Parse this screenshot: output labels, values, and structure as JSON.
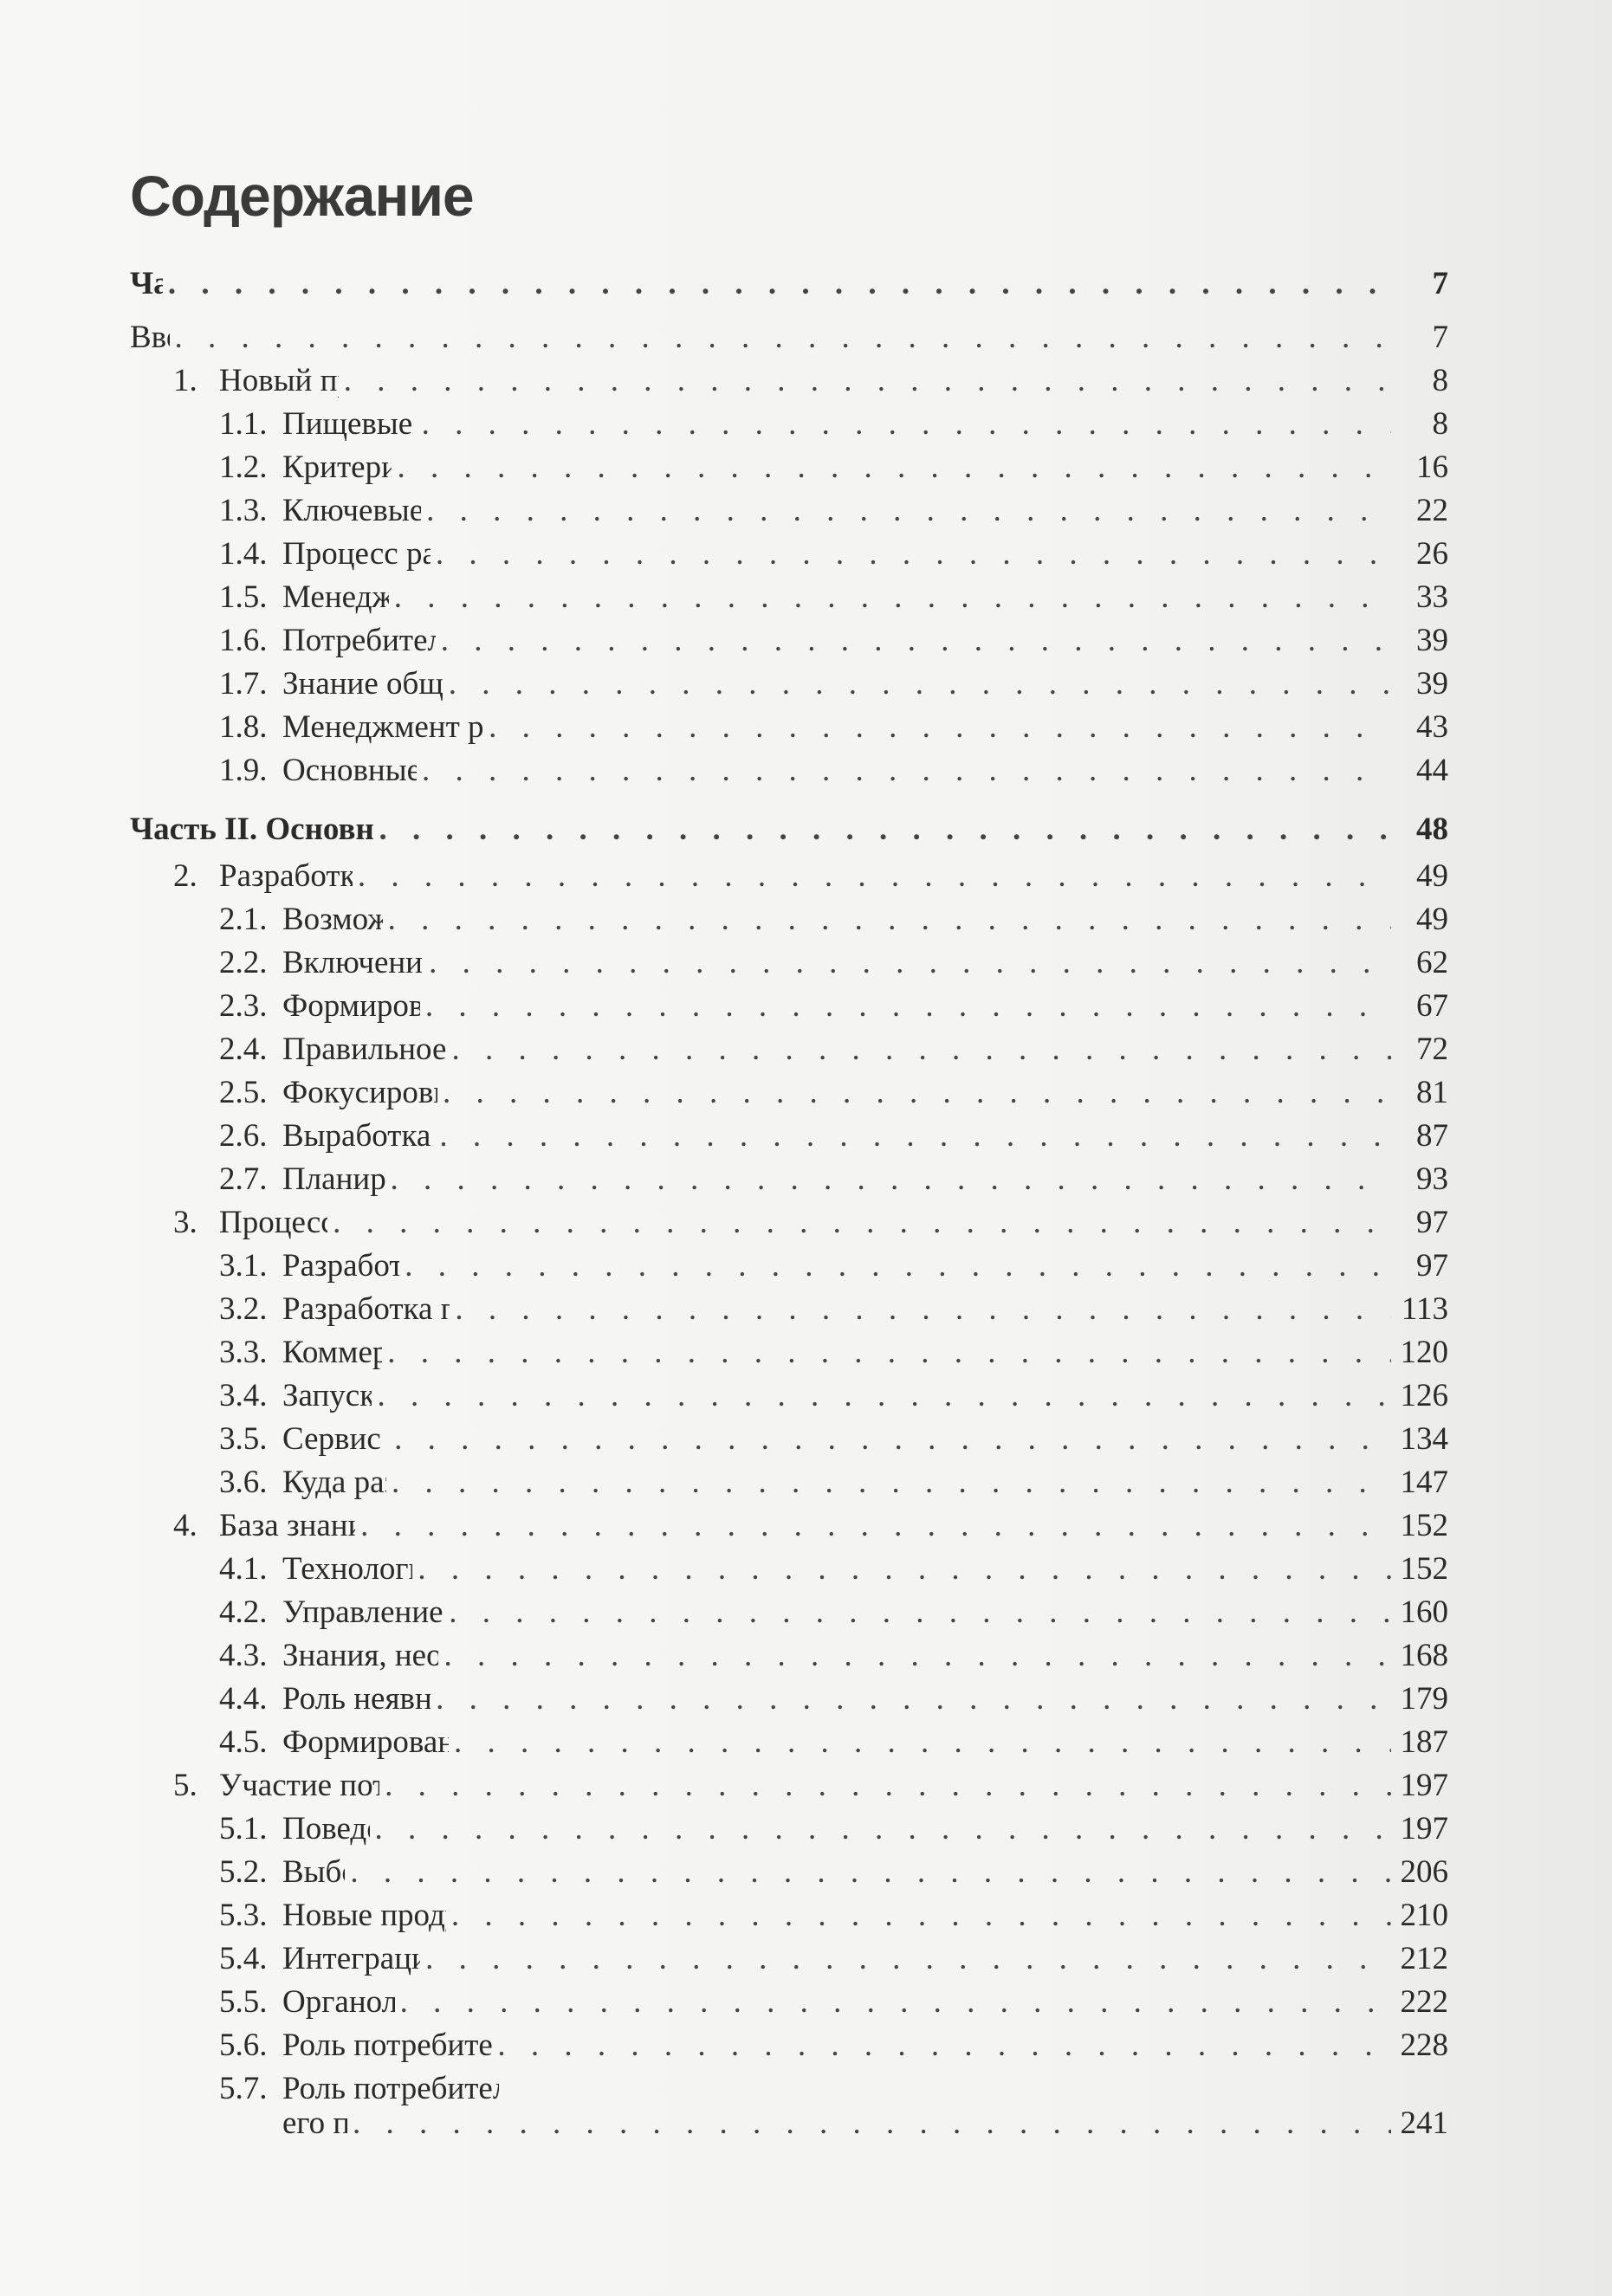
{
  "title": "Содержание",
  "entries": [
    {
      "level": 0,
      "num": "",
      "text": "Часть I",
      "page": "7",
      "part": true
    },
    {
      "level": 0,
      "num": "",
      "text": "Введение",
      "page": "7"
    },
    {
      "level": 1,
      "num": "1.",
      "text": "Новый продукт – ключи к успеху",
      "page": "8"
    },
    {
      "level": 2,
      "num": "1.1.",
      "text": "Пищевые продукты – основа инноваций",
      "page": "8"
    },
    {
      "level": 2,
      "num": "1.2.",
      "text": "Критерии успешности продукта",
      "page": "16"
    },
    {
      "level": 2,
      "num": "1.3.",
      "text": "Ключевые факторы успешности продукта",
      "page": "22"
    },
    {
      "level": 2,
      "num": "1.4.",
      "text": "Процесс разработки продукта: основа успеха",
      "page": "26"
    },
    {
      "level": 2,
      "num": "1.5.",
      "text": "Менеджмент успеха продуктов",
      "page": "33"
    },
    {
      "level": 2,
      "num": "1.6.",
      "text": "Потребители и рынки: ключ к успеху продукта",
      "page": "39"
    },
    {
      "level": 2,
      "num": "1.7.",
      "text": "Знание общества, промышленности и технологий",
      "page": "39"
    },
    {
      "level": 2,
      "num": "1.8.",
      "text": "Менеджмент разработки продуктов в пищевой промышленности",
      "page": "43"
    },
    {
      "level": 2,
      "num": "1.9.",
      "text": "Основные положения и структура книги",
      "page": "44"
    },
    {
      "level": 0,
      "num": "",
      "text": "Часть II. Основные требования к успешной разработке продуктов",
      "page": "48",
      "part": true
    },
    {
      "level": 1,
      "num": "2.",
      "text": "Разработка инновационной стратегии",
      "page": "49"
    },
    {
      "level": 2,
      "num": "2.1.",
      "text": "Возможности для инноваций",
      "page": "49"
    },
    {
      "level": 2,
      "num": "2.2.",
      "text": "Включение инноваций в бизнес-стратегию",
      "page": "62"
    },
    {
      "level": 2,
      "num": "2.3.",
      "text": "Формирование инновационной стратегии",
      "page": "67"
    },
    {
      "level": 2,
      "num": "2.4.",
      "text": "Правильное исполнение инновационной стратегии",
      "page": "72"
    },
    {
      "level": 2,
      "num": "2.5.",
      "text": "Фокусировка программы разработки продуктов",
      "page": "81"
    },
    {
      "level": 2,
      "num": "2.6.",
      "text": "Выработка стратегии по разработке продуктов",
      "page": "87"
    },
    {
      "level": 2,
      "num": "2.7.",
      "text": "Планирование программы РП",
      "page": "93"
    },
    {
      "level": 1,
      "num": "3.",
      "text": "Процесс разработки продукта",
      "page": "97"
    },
    {
      "level": 2,
      "num": "3.1.",
      "text": "Разработка продуктовой стратегии",
      "page": "97"
    },
    {
      "level": 2,
      "num": "3.2.",
      "text": "Разработка продукта и технологии его производства",
      "page": "113"
    },
    {
      "level": 2,
      "num": "3.3.",
      "text": "Коммерциализация продукта",
      "page": "120"
    },
    {
      "level": 2,
      "num": "3.4.",
      "text": "Запуск продукта и оценка",
      "page": "126"
    },
    {
      "level": 2,
      "num": "3.5.",
      "text": "Сервис в разработке продуктов",
      "page": "134"
    },
    {
      "level": 2,
      "num": "3.6.",
      "text": "Куда развивается процесс РП?",
      "page": "147"
    },
    {
      "level": 1,
      "num": "4.",
      "text": "База знаний для разработки продуктов",
      "page": "152"
    },
    {
      "level": 2,
      "num": "4.1.",
      "text": "Технология, знания и пищевая система",
      "page": "152"
    },
    {
      "level": 2,
      "num": "4.2.",
      "text": "Управление знаниями или навигация по знаниям?",
      "page": "160"
    },
    {
      "level": 2,
      "num": "4.3.",
      "text": "Знания, необходимые для разработки продуктов",
      "page": "168"
    },
    {
      "level": 2,
      "num": "4.4.",
      "text": "Роль неявных знаний в разработке продуктов",
      "page": "179"
    },
    {
      "level": 2,
      "num": "4.5.",
      "text": "Формирование знаний в ходе разработки продуктов",
      "page": "187"
    },
    {
      "level": 1,
      "num": "5.",
      "text": "Участие потребителей в разработке продуктов",
      "page": "197"
    },
    {
      "level": 2,
      "num": "5.1.",
      "text": "Поведение потребителей",
      "page": "197"
    },
    {
      "level": 2,
      "num": "5.2.",
      "text": "Выбор продуктов",
      "page": "206"
    },
    {
      "level": 2,
      "num": "5.3.",
      "text": "Новые продукты и отношение к ним потребителей",
      "page": "210"
    },
    {
      "level": 2,
      "num": "5.4.",
      "text": "Интеграция нужд и желаний потребителя",
      "page": "212"
    },
    {
      "level": 2,
      "num": "5.5.",
      "text": "Органолептические потребности",
      "page": "222"
    },
    {
      "level": 2,
      "num": "5.6.",
      "text": "Роль потребителей на стадии 1 «Разработка продуктовой стратегии»",
      "page": "228"
    },
    {
      "level": 2,
      "num": "5.7.",
      "text": "Роль потребителей на стадии 2 «Разработка продукта и технологии",
      "continuation": "его производства»",
      "page": "241"
    }
  ]
}
